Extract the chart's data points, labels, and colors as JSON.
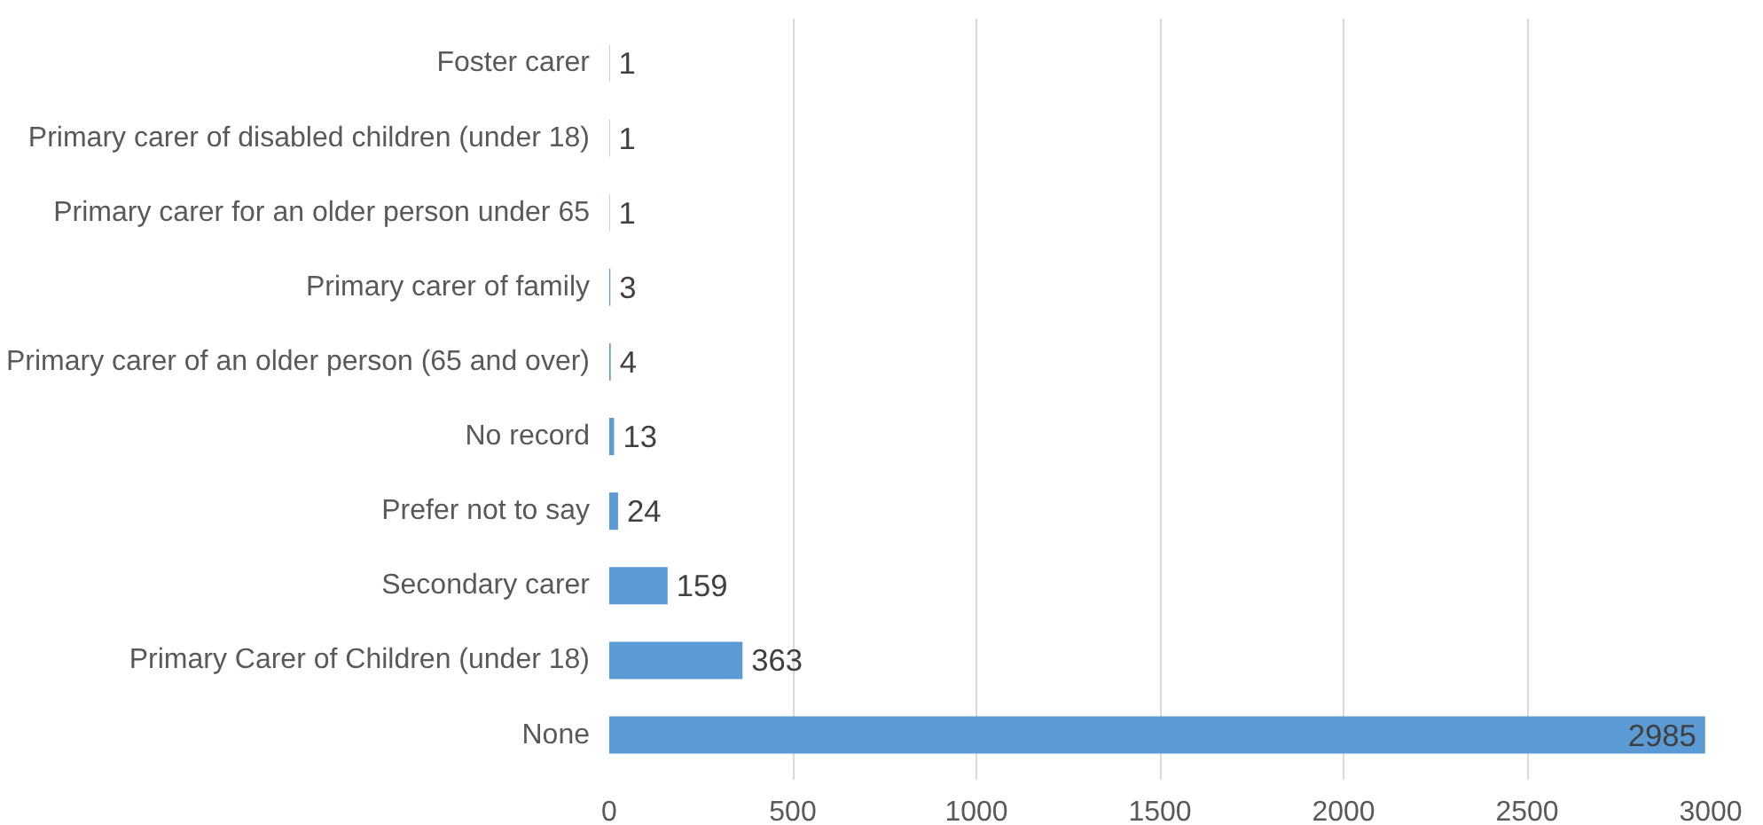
{
  "chart_data": {
    "type": "bar",
    "orientation": "horizontal",
    "categories": [
      "Foster carer",
      "Primary carer of disabled children (under 18)",
      "Primary carer for an older person under 65",
      "Primary carer of family",
      "Primary carer of an older person (65 and over)",
      "No record",
      "Prefer not to say",
      "Secondary carer",
      "Primary Carer of Children (under 18)",
      "None"
    ],
    "values": [
      1,
      1,
      1,
      3,
      4,
      13,
      24,
      159,
      363,
      2985
    ],
    "color": "#5b9bd5",
    "xlim": [
      0,
      3000
    ],
    "xticks": [
      0,
      500,
      1000,
      1500,
      2000,
      2500,
      3000
    ],
    "grid": "x",
    "data_labels": true
  }
}
